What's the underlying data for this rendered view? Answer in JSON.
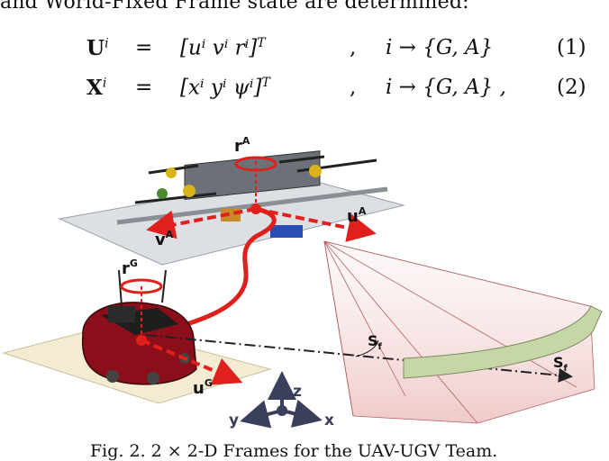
{
  "intro_text": "and World-Fixed Frame state are determined:",
  "equations": [
    {
      "lhs": "U",
      "sup": "i",
      "vector": "[uⁱ   vⁱ   rⁱ]",
      "transpose": "T",
      "condition": "i → {G,  A}",
      "trailing": "",
      "number": "(1)"
    },
    {
      "lhs": "X",
      "sup": "i",
      "vector": "[xⁱ   yⁱ   ψⁱ]",
      "transpose": "T",
      "condition": "i → {G,  A}",
      "trailing": ",",
      "number": "(2)"
    }
  ],
  "figure": {
    "labels": {
      "r_a": "r",
      "r_a_sup": "A",
      "u_a": "u",
      "u_a_sup": "A",
      "v_a": "v",
      "v_a_sup": "A",
      "r_g": "r",
      "r_g_sup": "G",
      "u_g": "u",
      "u_g_sup": "G",
      "s_f1": "S",
      "s_f1_sub": "f",
      "s_f2": "S",
      "s_f2_sub": "f",
      "axis_z": "z",
      "axis_y": "y",
      "axis_x": "x"
    },
    "colors": {
      "arrow": "#e0201c",
      "tether": "#e0201c",
      "robot_body": "#8b0f1a",
      "camera_band": "#c7d6a6",
      "ground_mat": "#f3ecd2",
      "platform": "#dcdfe4"
    }
  },
  "caption": "Fig. 2.   2 × 2-D Frames for the UAV-UGV Team."
}
